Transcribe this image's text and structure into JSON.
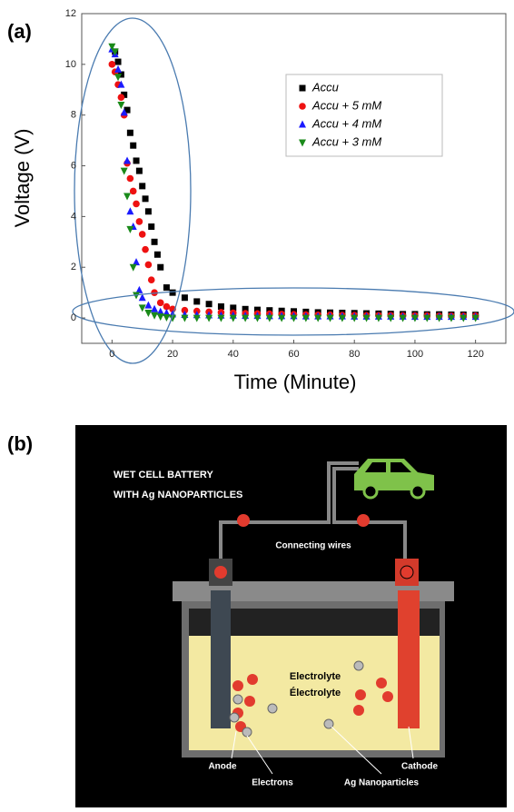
{
  "panel_labels": [
    "(a)",
    "(b)"
  ],
  "chart_data": {
    "type": "scatter",
    "xlabel": "Time (Minute)",
    "ylabel": "Voltage (V)",
    "xlim": [
      -10,
      130
    ],
    "ylim": [
      -1,
      12
    ],
    "xticks": [
      0,
      20,
      40,
      60,
      80,
      100,
      120
    ],
    "yticks": [
      0,
      2,
      4,
      6,
      8,
      10,
      12
    ],
    "legend": "upper right",
    "series": [
      {
        "name": "Accu",
        "color": "#000000",
        "marker": "square",
        "x": [
          1,
          2,
          3,
          4,
          5,
          6,
          7,
          8,
          9,
          10,
          11,
          12,
          13,
          14,
          15,
          16,
          18,
          20,
          24,
          28,
          32,
          36,
          40,
          44,
          48,
          52,
          56,
          60,
          64,
          68,
          72,
          76,
          80,
          84,
          88,
          92,
          96,
          100,
          104,
          108,
          112,
          116,
          120
        ],
        "values": [
          10.5,
          10.1,
          9.6,
          8.8,
          8.2,
          7.3,
          6.8,
          6.2,
          5.8,
          5.2,
          4.7,
          4.2,
          3.6,
          3.0,
          2.5,
          2.0,
          1.2,
          1.0,
          0.8,
          0.65,
          0.55,
          0.45,
          0.4,
          0.35,
          0.32,
          0.3,
          0.28,
          0.26,
          0.24,
          0.22,
          0.21,
          0.2,
          0.19,
          0.18,
          0.17,
          0.16,
          0.15,
          0.15,
          0.14,
          0.14,
          0.13,
          0.13,
          0.12
        ]
      },
      {
        "name": "Accu + 5 mM",
        "color": "#ee1111",
        "marker": "circle",
        "x": [
          0,
          1,
          2,
          3,
          4,
          5,
          6,
          7,
          8,
          9,
          10,
          11,
          12,
          13,
          14,
          16,
          18,
          20,
          24,
          28,
          32,
          36,
          40,
          44,
          48,
          52,
          56,
          60,
          64,
          68,
          72,
          76,
          80,
          84,
          88,
          92,
          96,
          100,
          104,
          108,
          112,
          116,
          120
        ],
        "values": [
          10.0,
          9.7,
          9.2,
          8.7,
          8.0,
          6.1,
          5.5,
          5.0,
          4.5,
          3.8,
          3.3,
          2.7,
          2.1,
          1.5,
          1.0,
          0.6,
          0.45,
          0.35,
          0.3,
          0.27,
          0.24,
          0.22,
          0.2,
          0.18,
          0.17,
          0.16,
          0.15,
          0.14,
          0.13,
          0.12,
          0.12,
          0.11,
          0.11,
          0.1,
          0.1,
          0.1,
          0.09,
          0.09,
          0.09,
          0.08,
          0.08,
          0.08,
          0.08
        ]
      },
      {
        "name": "Accu + 4 mM",
        "color": "#1a1aff",
        "marker": "triangle-up",
        "x": [
          0,
          1,
          2,
          3,
          4,
          5,
          6,
          7,
          8,
          9,
          10,
          12,
          14,
          16,
          18,
          20,
          24,
          28,
          32,
          36,
          40,
          44,
          48,
          52,
          56,
          60,
          64,
          68,
          72,
          76,
          80,
          84,
          88,
          92,
          96,
          100,
          104,
          108,
          112,
          116,
          120
        ],
        "values": [
          10.6,
          10.4,
          9.8,
          9.2,
          8.1,
          6.2,
          4.2,
          3.6,
          2.2,
          1.1,
          0.8,
          0.5,
          0.35,
          0.25,
          0.2,
          0.15,
          0.13,
          0.12,
          0.11,
          0.1,
          0.1,
          0.09,
          0.09,
          0.08,
          0.08,
          0.08,
          0.07,
          0.07,
          0.07,
          0.07,
          0.06,
          0.06,
          0.06,
          0.06,
          0.06,
          0.05,
          0.05,
          0.05,
          0.05,
          0.05,
          0.05
        ]
      },
      {
        "name": "Accu + 3 mM",
        "color": "#1a8a1a",
        "marker": "triangle-down",
        "x": [
          0,
          1,
          2,
          3,
          4,
          5,
          6,
          7,
          8,
          10,
          12,
          14,
          16,
          18,
          20,
          24,
          28,
          32,
          36,
          40,
          44,
          48,
          52,
          56,
          60,
          64,
          68,
          72,
          76,
          80,
          84,
          88,
          92,
          96,
          100,
          104,
          108,
          112,
          116,
          120
        ],
        "values": [
          10.7,
          10.5,
          9.5,
          8.4,
          5.8,
          4.8,
          3.5,
          2.0,
          0.9,
          0.4,
          0.2,
          0.1,
          0.05,
          0.02,
          0,
          0,
          0,
          0,
          0,
          0,
          0,
          0,
          0,
          0,
          0,
          0,
          0,
          0,
          0,
          0,
          0,
          0,
          0,
          0,
          0,
          0,
          0,
          0,
          0,
          0
        ]
      }
    ]
  },
  "diagram": {
    "title": [
      "WET CELL BATTERY",
      "WITH Ag NANOPARTICLES"
    ],
    "wires": "Connecting wires",
    "electrolyte": [
      "Electrolyte",
      "Électrolyte"
    ],
    "anode": "Anode",
    "cathode": "Cathode",
    "electrons": "Electrons",
    "nanoparticles": "Ag Nanoparticles"
  }
}
